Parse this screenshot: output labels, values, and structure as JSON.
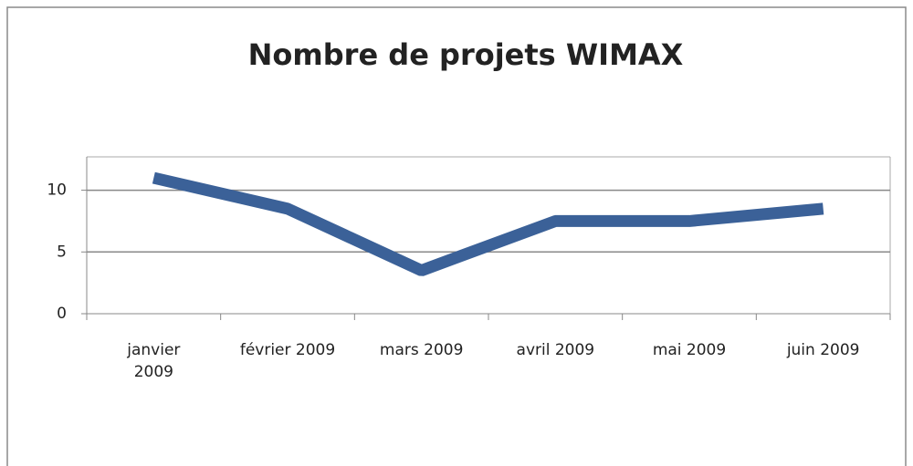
{
  "chart_data": {
    "type": "line",
    "title": "Nombre de projets WIMAX",
    "categories": [
      "janvier 2009",
      "février 2009",
      "mars 2009",
      "avril 2009",
      "mai 2009",
      "juin 2009"
    ],
    "values": [
      11,
      8.5,
      3.5,
      7.5,
      7.5,
      8.5
    ],
    "color": "#3b6198",
    "ylim": [
      0,
      12.7
    ],
    "yticks": [
      0,
      5,
      10
    ],
    "grid": true
  }
}
